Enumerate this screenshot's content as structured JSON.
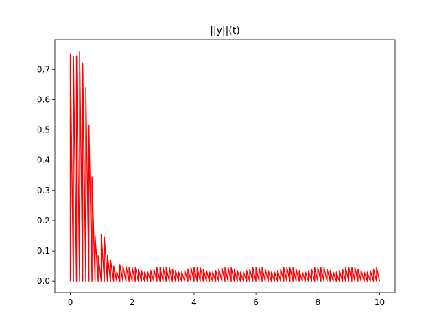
{
  "chart_data": {
    "type": "line",
    "title": "||y||(t)",
    "x": [
      0,
      0,
      0.1,
      0.1,
      0.2,
      0.2,
      0.3,
      0.3,
      0.4,
      0.4,
      0.5,
      0.5,
      0.6,
      0.6,
      0.7,
      0.7,
      0.8,
      0.8,
      0.9,
      0.9,
      1,
      1,
      1.1,
      1.1,
      1.2,
      1.2,
      1.3,
      1.3,
      1.4,
      1.4,
      1.5,
      1.5,
      1.6,
      1.6,
      1.7,
      1.7,
      1.8,
      1.8,
      1.9,
      1.9,
      2,
      2,
      2.1,
      2.1,
      2.2,
      2.2,
      2.3,
      2.3,
      2.4,
      2.4,
      2.5,
      2.5,
      2.6,
      2.6,
      2.7,
      2.7,
      2.8,
      2.8,
      2.9,
      2.9,
      3,
      3,
      3.1,
      3.1,
      3.2,
      3.2,
      3.3,
      3.3,
      3.4,
      3.4,
      3.5,
      3.5,
      3.6,
      3.6,
      3.7,
      3.7,
      3.8,
      3.8,
      3.9,
      3.9,
      4,
      4,
      4.1,
      4.1,
      4.2,
      4.2,
      4.3,
      4.3,
      4.4,
      4.4,
      4.5,
      4.5,
      4.6,
      4.6,
      4.7,
      4.7,
      4.8,
      4.8,
      4.9,
      4.9,
      5,
      5,
      5.1,
      5.1,
      5.2,
      5.2,
      5.3,
      5.3,
      5.4,
      5.4,
      5.5,
      5.5,
      5.6,
      5.6,
      5.7,
      5.7,
      5.8,
      5.8,
      5.9,
      5.9,
      6,
      6,
      6.1,
      6.1,
      6.2,
      6.2,
      6.3,
      6.3,
      6.4,
      6.4,
      6.5,
      6.5,
      6.6,
      6.6,
      6.7,
      6.7,
      6.8,
      6.8,
      6.9,
      6.9,
      7,
      7,
      7.1,
      7.1,
      7.2,
      7.2,
      7.3,
      7.3,
      7.4,
      7.4,
      7.5,
      7.5,
      7.6,
      7.6,
      7.7,
      7.7,
      7.8,
      7.8,
      7.9,
      7.9,
      8,
      8,
      8.1,
      8.1,
      8.2,
      8.2,
      8.3,
      8.3,
      8.4,
      8.4,
      8.5,
      8.5,
      8.6,
      8.6,
      8.7,
      8.7,
      8.8,
      8.8,
      8.9,
      8.9,
      9,
      9,
      9.1,
      9.1,
      9.2,
      9.2,
      9.3,
      9.3,
      9.4,
      9.4,
      9.5,
      9.5,
      9.6,
      9.6,
      9.7,
      9.7,
      9.8,
      9.8,
      9.9,
      9.9,
      10
    ],
    "series": [
      {
        "color": "#ff0000",
        "values": [
          0,
          0.75,
          0,
          0.745,
          0,
          0.745,
          0,
          0.76,
          0,
          0.72,
          0,
          0.64,
          0,
          0.515,
          0,
          0.345,
          0,
          0.15,
          0,
          0.085,
          0,
          0.155,
          0,
          0.145,
          0,
          0.085,
          0,
          0.07,
          0,
          0.05,
          0,
          0.03,
          0,
          0.055,
          0,
          0.05,
          0,
          0.05,
          0,
          0.045,
          0,
          0.045,
          0,
          0.045,
          0,
          0.04,
          0,
          0.035,
          0,
          0.03,
          0,
          0.03,
          0,
          0.035,
          0,
          0.04,
          0,
          0.045,
          0,
          0.045,
          0,
          0.045,
          0,
          0.045,
          0,
          0.045,
          0,
          0.04,
          0,
          0.035,
          0,
          0.03,
          0,
          0.03,
          0,
          0.035,
          0,
          0.04,
          0,
          0.045,
          0,
          0.045,
          0,
          0.045,
          0,
          0.045,
          0,
          0.04,
          0,
          0.035,
          0,
          0.03,
          0,
          0.03,
          0,
          0.035,
          0,
          0.04,
          0,
          0.045,
          0,
          0.045,
          0,
          0.045,
          0,
          0.045,
          0,
          0.04,
          0,
          0.035,
          0,
          0.03,
          0,
          0.03,
          0,
          0.035,
          0,
          0.04,
          0,
          0.045,
          0,
          0.045,
          0,
          0.045,
          0,
          0.045,
          0,
          0.04,
          0,
          0.035,
          0,
          0.03,
          0,
          0.03,
          0,
          0.035,
          0,
          0.04,
          0,
          0.045,
          0,
          0.045,
          0,
          0.045,
          0,
          0.045,
          0,
          0.04,
          0,
          0.035,
          0,
          0.03,
          0,
          0.03,
          0,
          0.035,
          0,
          0.04,
          0,
          0.045,
          0,
          0.045,
          0,
          0.045,
          0,
          0.045,
          0,
          0.04,
          0,
          0.035,
          0,
          0.03,
          0,
          0.03,
          0,
          0.035,
          0,
          0.04,
          0,
          0.045,
          0,
          0.045,
          0,
          0.045,
          0,
          0.045,
          0,
          0.04,
          0,
          0.035,
          0,
          0.03,
          0,
          0.03,
          0,
          0.035,
          0,
          0.04,
          0,
          0.045,
          0
        ]
      }
    ],
    "xlim": [
      -0.5,
      10.5
    ],
    "xticks": [
      0,
      2,
      4,
      6,
      8,
      10
    ],
    "ylim": [
      -0.038,
      0.798
    ],
    "yticks": [
      {
        "value": 0,
        "label": "0.0"
      },
      0.1,
      0.2,
      0.3,
      0.4,
      0.5,
      0.6,
      0.7
    ]
  }
}
